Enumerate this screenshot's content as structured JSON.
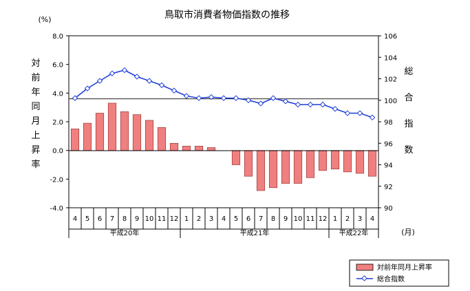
{
  "chart_data": {
    "type": "bar+line",
    "title": "鳥取市消費者物価指数の推移",
    "left_unit": "(%)",
    "left_label": "対前年同月上昇率",
    "right_label": "総合指数",
    "x_unit": "(月)",
    "ylim_left": [
      -4.0,
      8.0
    ],
    "left_ticks": [
      "8.0",
      "6.0",
      "4.0",
      "2.0",
      "0.0",
      "-2.0",
      "-4.0"
    ],
    "ylim_right": [
      90,
      106
    ],
    "right_ticks": [
      "106",
      "104",
      "102",
      "100",
      "98",
      "96",
      "94",
      "92",
      "90"
    ],
    "months": [
      "4",
      "5",
      "6",
      "7",
      "8",
      "9",
      "10",
      "11",
      "12",
      "1",
      "2",
      "3",
      "4",
      "5",
      "6",
      "7",
      "8",
      "9",
      "10",
      "11",
      "12",
      "1",
      "2",
      "3",
      "4"
    ],
    "year_groups": [
      {
        "label": "平成20年",
        "start": 0,
        "end": 9
      },
      {
        "label": "平成21年",
        "start": 9,
        "end": 21
      },
      {
        "label": "平成22年",
        "start": 21,
        "end": 25
      }
    ],
    "series": [
      {
        "name": "対前年同月上昇率",
        "type": "bar",
        "axis": "left",
        "color": "#f08080",
        "values": [
          1.5,
          1.9,
          2.6,
          3.3,
          2.7,
          2.5,
          2.1,
          1.6,
          0.5,
          0.3,
          0.3,
          0.2,
          0.0,
          -1.0,
          -1.8,
          -2.8,
          -2.6,
          -2.3,
          -2.3,
          -1.9,
          -1.4,
          -1.3,
          -1.5,
          -1.6,
          -1.8
        ]
      },
      {
        "name": "総合指数",
        "type": "line",
        "axis": "right",
        "color": "#1f3fd8",
        "values": [
          100.2,
          101.1,
          101.8,
          102.5,
          102.8,
          102.2,
          101.8,
          101.4,
          100.9,
          100.4,
          100.2,
          100.3,
          100.2,
          100.2,
          100.0,
          99.7,
          100.2,
          99.9,
          99.6,
          99.6,
          99.6,
          99.2,
          98.8,
          98.8,
          98.4
        ]
      }
    ],
    "reference_line": {
      "axis": "left",
      "value": 3.6
    }
  }
}
